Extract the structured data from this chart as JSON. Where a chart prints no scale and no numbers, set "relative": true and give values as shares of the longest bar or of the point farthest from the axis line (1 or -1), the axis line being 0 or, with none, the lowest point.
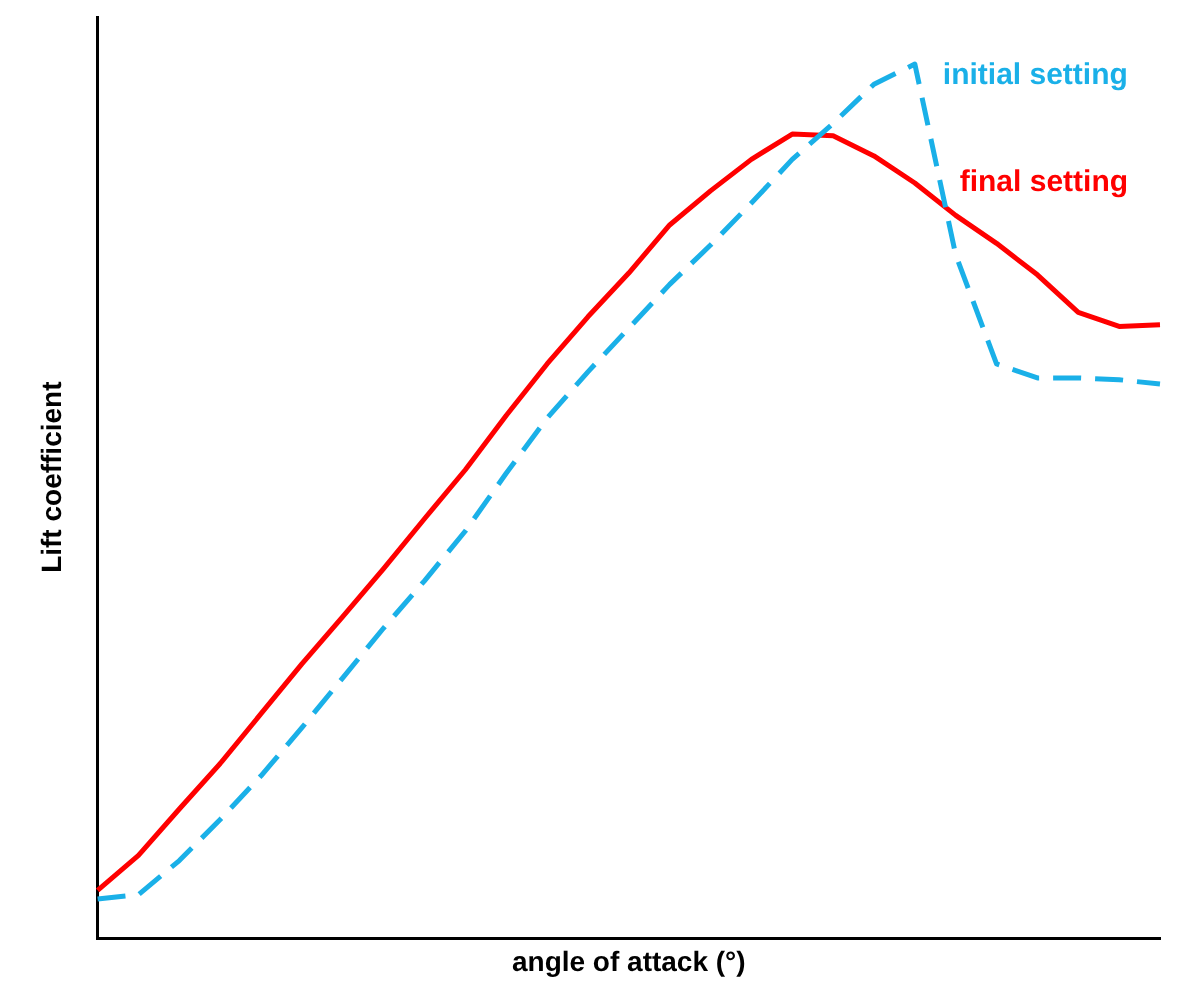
{
  "chart_data": {
    "type": "line",
    "relative": true,
    "xlabel": "angle of attack (°)",
    "ylabel": "Lift coefficient",
    "legend": false,
    "grid": false,
    "marker": "none",
    "categories": [
      null,
      null,
      null,
      null,
      null,
      null,
      null,
      null,
      null,
      null,
      null,
      null,
      null,
      null,
      null,
      null,
      null,
      null,
      null,
      null,
      null,
      null,
      null,
      null,
      null,
      null,
      null
    ],
    "series": [
      {
        "name": "initial setting",
        "color": "#1ab0e8",
        "line_style": "dashed",
        "values": [
          0.045,
          0.05,
          0.089,
          0.136,
          0.186,
          0.241,
          0.298,
          0.355,
          0.409,
          0.466,
          0.532,
          0.595,
          0.648,
          0.698,
          0.748,
          0.793,
          0.841,
          0.891,
          0.932,
          0.977,
          1,
          0.782,
          0.657,
          0.641,
          0.641,
          0.639,
          0.634
        ]
      },
      {
        "name": "final setting",
        "color": "#ff0000",
        "line_style": "solid",
        "values": [
          0.055,
          0.095,
          0.148,
          0.2,
          0.257,
          0.314,
          0.368,
          0.423,
          0.48,
          0.536,
          0.598,
          0.657,
          0.711,
          0.761,
          0.816,
          0.855,
          0.891,
          0.92,
          0.918,
          0.895,
          0.864,
          0.827,
          0.795,
          0.759,
          0.716,
          0.7,
          0.702
        ]
      }
    ]
  }
}
